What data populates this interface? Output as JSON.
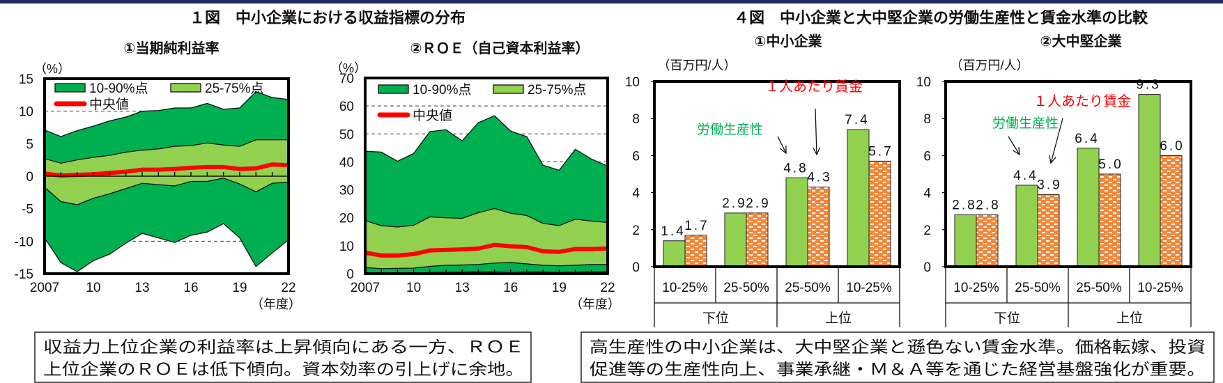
{
  "colors": {
    "top_rule": "#1f2a5a",
    "band_outer": "#00b050",
    "band_inner": "#92d050",
    "median": "#ff0000",
    "bar_productivity": "#92d050",
    "bar_wage": "#f4883a",
    "label_productivity": "#00b050",
    "label_wage": "#ff0000"
  },
  "figure1": {
    "title": "１図　中小企業における収益指標の分布",
    "note_lines": [
      "収益力上位企業の利益率は上昇傾向にある一方、ＲＯＥ",
      "上位企業のＲＯＥは低下傾向。資本効率の引上げに余地。"
    ]
  },
  "figure4": {
    "title": "４図　中小企業と大中堅企業の労働生産性と賃金水準の比較",
    "note_lines": [
      "高生産性の中小企業は、大中堅企業と遜色ない賃金水準。価格転嫁、投資",
      "促進等の生産性向上、事業承継・Ｍ＆Ａ等を通じた経営基盤強化が重要。"
    ]
  },
  "chart_data": [
    {
      "type": "area",
      "title": "①当期純利益率",
      "ylabel": "（%）",
      "xlabel": "（年度）",
      "ylim": [
        -15,
        15
      ],
      "yticks": [
        15,
        10,
        5,
        0,
        -5,
        -10,
        -15
      ],
      "xticks": [
        "2007",
        "10",
        "13",
        "16",
        "19",
        "22"
      ],
      "grid_dashed_at": [
        10,
        -10
      ],
      "legend": {
        "placement": "top-left",
        "items": [
          "10-90%点",
          "25-75%点",
          "中央値"
        ]
      },
      "x": [
        2007,
        2008,
        2009,
        2010,
        2011,
        2012,
        2013,
        2014,
        2015,
        2016,
        2017,
        2018,
        2019,
        2020,
        2021,
        2022
      ],
      "series": [
        {
          "name": "10-90%点",
          "lower": [
            -9.5,
            -13.3,
            -14.7,
            -13.0,
            -12.0,
            -10.3,
            -8.8,
            -9.5,
            -10.2,
            -9.1,
            -8.6,
            -7.3,
            -9.5,
            -13.9,
            -11.8,
            -9.8
          ],
          "upper": [
            7.1,
            6.1,
            7.0,
            7.7,
            8.5,
            9.1,
            10.0,
            10.1,
            10.5,
            10.5,
            11.2,
            10.3,
            10.5,
            13.0,
            12.1,
            11.8
          ]
        },
        {
          "name": "25-75%点",
          "lower": [
            -1.7,
            -3.9,
            -4.4,
            -3.4,
            -2.7,
            -1.9,
            -1.1,
            -1.3,
            -1.5,
            -0.8,
            -0.8,
            -0.3,
            -1.2,
            -2.4,
            -1.1,
            -0.9
          ],
          "upper": [
            2.7,
            2.0,
            2.5,
            2.9,
            3.2,
            3.7,
            4.0,
            4.2,
            4.6,
            4.7,
            5.1,
            4.8,
            4.6,
            5.6,
            5.6,
            5.6
          ]
        },
        {
          "name": "中央値",
          "values": [
            0.4,
            0.1,
            0.2,
            0.3,
            0.5,
            0.7,
            1.0,
            1.0,
            1.1,
            1.3,
            1.4,
            1.4,
            1.1,
            1.2,
            1.8,
            1.7
          ]
        }
      ]
    },
    {
      "type": "area",
      "title": "②ＲＯＥ（自己資本利益率）",
      "ylabel": "（%）",
      "xlabel": "（年度）",
      "ylim": [
        0,
        70
      ],
      "yticks": [
        70,
        60,
        50,
        40,
        30,
        20,
        10,
        0
      ],
      "xticks": [
        "2007",
        "10",
        "13",
        "16",
        "19",
        "22"
      ],
      "grid_dashed_at": [
        60,
        50,
        40
      ],
      "legend": {
        "placement": "top-left",
        "items": [
          "10-90%点",
          "25-75%点",
          "中央値"
        ]
      },
      "x": [
        2007,
        2008,
        2009,
        2010,
        2011,
        2012,
        2013,
        2014,
        2015,
        2016,
        2017,
        2018,
        2019,
        2020,
        2021,
        2022
      ],
      "series": [
        {
          "name": "10-90%点",
          "lower": [
            0.3,
            0.2,
            0.1,
            0.2,
            0.4,
            0.5,
            0.6,
            0.7,
            0.8,
            0.9,
            0.8,
            0.6,
            0.5,
            0.6,
            0.7,
            0.7
          ],
          "upper": [
            43.8,
            43.5,
            40.2,
            43.0,
            50.8,
            51.5,
            47.5,
            54.0,
            56.5,
            51.0,
            49.0,
            38.8,
            37.0,
            44.5,
            41.0,
            38.5
          ]
        },
        {
          "name": "25-75%点",
          "lower": [
            2.2,
            1.8,
            1.9,
            2.0,
            2.6,
            3.0,
            3.1,
            3.3,
            3.8,
            4.0,
            3.5,
            3.0,
            2.8,
            3.0,
            3.3,
            3.3
          ],
          "upper": [
            19.0,
            17.2,
            16.7,
            17.3,
            20.3,
            20.0,
            19.8,
            21.8,
            23.3,
            21.6,
            20.8,
            18.0,
            17.2,
            19.5,
            18.8,
            18.3
          ]
        },
        {
          "name": "中央値",
          "values": [
            7.5,
            6.5,
            6.5,
            7.0,
            8.3,
            8.5,
            8.7,
            9.0,
            10.3,
            9.8,
            9.5,
            8.0,
            7.8,
            8.8,
            8.8,
            9.0
          ]
        }
      ]
    },
    {
      "type": "bar",
      "title": "①中小企業",
      "ylabel": "（百万円/人）",
      "ylim": [
        0,
        10
      ],
      "yticks": [
        10,
        8,
        6,
        4,
        2,
        0
      ],
      "categories": [
        "10-25%",
        "25-50%",
        "25-50%",
        "10-25%"
      ],
      "groups": [
        {
          "label": "下位",
          "span": 2
        },
        {
          "label": "上位",
          "span": 2
        }
      ],
      "series": [
        {
          "name": "労働生産性",
          "values": [
            1.4,
            2.9,
            4.8,
            7.4
          ],
          "labels": [
            "1.4",
            "2.9",
            "4.8",
            "7.4"
          ]
        },
        {
          "name": "１人あたり賃金",
          "values": [
            1.7,
            2.9,
            4.3,
            5.7
          ],
          "labels": [
            "1.7",
            "2.9",
            "4.3",
            "5.7"
          ]
        }
      ]
    },
    {
      "type": "bar",
      "title": "②大中堅企業",
      "ylabel": "（百万円/人）",
      "ylim": [
        0,
        10
      ],
      "yticks": [
        10,
        8,
        6,
        4,
        2,
        0
      ],
      "categories": [
        "10-25%",
        "25-50%",
        "25-50%",
        "10-25%"
      ],
      "groups": [
        {
          "label": "下位",
          "span": 2
        },
        {
          "label": "上位",
          "span": 2
        }
      ],
      "series": [
        {
          "name": "労働生産性",
          "values": [
            2.8,
            4.4,
            6.4,
            9.3
          ],
          "labels": [
            "2.8",
            "4.4",
            "6.4",
            "9.3"
          ]
        },
        {
          "name": "１人あたり賃金",
          "values": [
            2.8,
            3.9,
            5.0,
            6.0
          ],
          "labels": [
            "2.8",
            "3.9",
            "5.0",
            "6.0"
          ]
        }
      ]
    }
  ]
}
